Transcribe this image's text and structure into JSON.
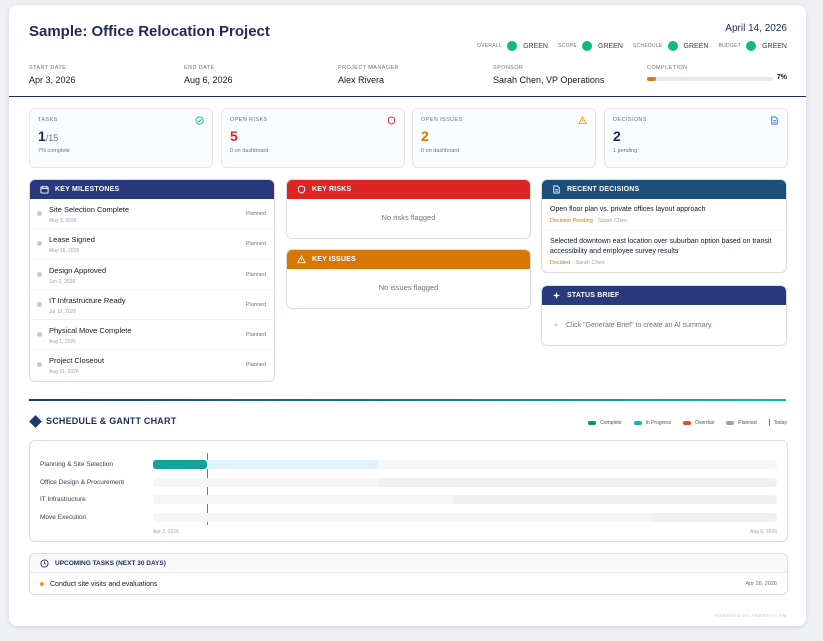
{
  "header": {
    "title": "Sample: Office Relocation Project",
    "date": "April 14, 2026",
    "status": [
      {
        "label": "OVERALL",
        "value": "GREEN",
        "color": "#10b981"
      },
      {
        "label": "SCOPE",
        "value": "GREEN",
        "color": "#10b981"
      },
      {
        "label": "SCHEDULE",
        "value": "GREEN",
        "color": "#10b981"
      },
      {
        "label": "BUDGET",
        "value": "GREEN",
        "color": "#10b981"
      }
    ],
    "start_date_label": "START DATE",
    "start_date": "Apr 3, 2026",
    "end_date_label": "END DATE",
    "end_date": "Aug 6, 2026",
    "pm_label": "PROJECT MANAGER",
    "pm": "Alex Rivera",
    "sponsor_label": "SPONSOR",
    "sponsor": "Sarah Chen, VP Operations",
    "completion_label": "COMPLETION",
    "completion_pct": "7%",
    "completion_value": 0.07
  },
  "stats": {
    "tasks": {
      "label": "TASKS",
      "value": "1",
      "total": "/15",
      "sub": "7% complete",
      "color": "#1e2a5a"
    },
    "risks": {
      "label": "OPEN RISKS",
      "value": "5",
      "sub": "0 on dashboard",
      "color": "#dc2626"
    },
    "issues": {
      "label": "OPEN ISSUES",
      "value": "2",
      "sub": "0 on dashboard",
      "color": "#d97706"
    },
    "decisions": {
      "label": "DECISIONS",
      "value": "2",
      "sub": "1 pending",
      "color": "#1e2a5a"
    }
  },
  "milestones": {
    "title": "KEY MILESTONES",
    "items": [
      {
        "name": "Site Selection Complete",
        "date": "May 3, 2026",
        "status": "Planned"
      },
      {
        "name": "Lease Signed",
        "date": "May 18, 2026",
        "status": "Planned"
      },
      {
        "name": "Design Approved",
        "date": "Jun 2, 2026",
        "status": "Planned"
      },
      {
        "name": "IT Infrastructure Ready",
        "date": "Jul 12, 2026",
        "status": "Planned"
      },
      {
        "name": "Physical Move Complete",
        "date": "Aug 1, 2026",
        "status": "Planned"
      },
      {
        "name": "Project Closeout",
        "date": "Aug 21, 2026",
        "status": "Planned"
      }
    ]
  },
  "risks_panel": {
    "title": "KEY RISKS",
    "empty": "No risks flagged"
  },
  "issues_panel": {
    "title": "KEY ISSUES",
    "empty": "No issues flagged"
  },
  "decisions_panel": {
    "title": "RECENT DECISIONS",
    "items": [
      {
        "title": "Open floor plan vs. private offices layout approach",
        "status": "Decision Pending",
        "owner": "Sarah Chen"
      },
      {
        "title": "Selected downtown east location over suburban option based on transit accessibility and employee survey results",
        "status": "Decided",
        "owner": "Sarah Chen"
      }
    ]
  },
  "brief_panel": {
    "title": "STATUS BRIEF",
    "hint": "Click \"Generate Brief\" to create an AI summary."
  },
  "schedule": {
    "title": "SCHEDULE & GANTT CHART",
    "legend": [
      {
        "label": "Complete",
        "color": "#059669"
      },
      {
        "label": "In Progress",
        "color": "#14b8a6"
      },
      {
        "label": "Overdue",
        "color": "#ef4444"
      },
      {
        "label": "Planned",
        "color": "#9ca3af"
      }
    ],
    "today_label": "Today",
    "axis_start": "Apr 3, 2026",
    "axis_end": "Aug 6, 2026",
    "rows": [
      {
        "name": "Planning & Site Selection",
        "start": 0.0,
        "end": 0.36,
        "progress": 0.087
      },
      {
        "name": "Office Design & Procurement",
        "start": 0.36,
        "end": 1.0,
        "progress": 0
      },
      {
        "name": "IT Infrastructure",
        "start": 0.48,
        "end": 1.0,
        "progress": 0
      },
      {
        "name": "Move Execution",
        "start": 0.8,
        "end": 1.0,
        "progress": 0
      }
    ]
  },
  "upcoming": {
    "title": "UPCOMING TASKS (NEXT 30 DAYS)",
    "items": [
      {
        "name": "Conduct site visits and evaluations",
        "date": "Apr 28, 2026"
      }
    ]
  },
  "footer": {
    "powered": "POWERED BY AGENTIVA PM"
  }
}
